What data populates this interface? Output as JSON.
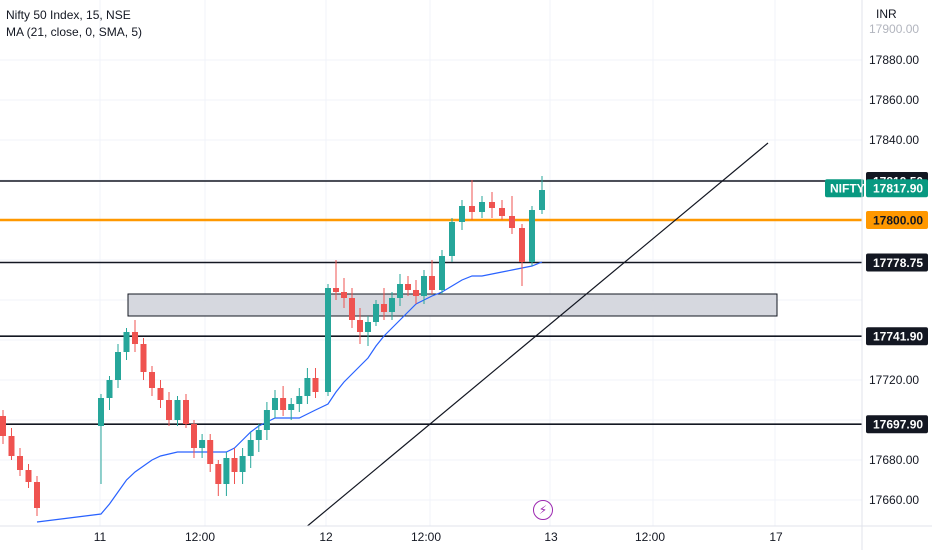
{
  "header": {
    "title": "Nifty 50 Index, 15, NSE",
    "indicator": "MA (21, close, 0, SMA, 5)"
  },
  "currency": "INR",
  "symbol_tag": "NIFTY",
  "icons": {
    "event_marker": "lightning-bolt-icon"
  },
  "colors": {
    "up": "#26a69a",
    "down": "#ef5350",
    "ma": "#2962ff",
    "orange_level": "#ff9800",
    "price_tag": "#089981",
    "level_label": "#131722",
    "zone_fill": "#d1d4dc"
  },
  "chart_data": {
    "type": "candlestick",
    "title": "Nifty 50 Index, 15, NSE",
    "y_axis": {
      "ticks": [
        17880,
        17860,
        17840,
        17720,
        17680,
        17660
      ],
      "tick_labels": [
        "17880.00",
        "17860.00",
        "17840.00",
        "17720.00",
        "17680.00",
        "17660.00"
      ],
      "range": [
        17650,
        17900
      ]
    },
    "x_axis": {
      "tick_labels": [
        "11",
        "12:00",
        "12",
        "12:00",
        "13",
        "12:00",
        "17"
      ]
    },
    "horizontal_levels": [
      {
        "value": 17819.5,
        "label": "17819.50",
        "color": "#131722"
      },
      {
        "value": 17800.0,
        "label": "17800.00",
        "color": "#ff9800"
      },
      {
        "value": 17778.75,
        "label": "17778.75",
        "color": "#131722"
      },
      {
        "value": 17741.9,
        "label": "17741.90",
        "color": "#131722"
      },
      {
        "value": 17697.9,
        "label": "17697.90",
        "color": "#131722"
      }
    ],
    "last_price": {
      "value": 17817.9,
      "label": "17817.90"
    },
    "zone": {
      "from": 17752,
      "to": 17763
    },
    "trendline": {
      "start_value": 17645,
      "end_value": 17840
    },
    "candles": [
      [
        17702,
        17705,
        17688,
        17692
      ],
      [
        17692,
        17696,
        17680,
        17682
      ],
      [
        17682,
        17686,
        17672,
        17675
      ],
      [
        17675,
        17678,
        17666,
        17669
      ],
      [
        17669,
        17672,
        17652,
        17656
      ],
      [
        17697,
        17713,
        17668,
        17711
      ],
      [
        17711,
        17722,
        17705,
        17720
      ],
      [
        17720,
        17738,
        17716,
        17734
      ],
      [
        17734,
        17746,
        17730,
        17744
      ],
      [
        17744,
        17750,
        17734,
        17738
      ],
      [
        17738,
        17741,
        17720,
        17724
      ],
      [
        17724,
        17727,
        17712,
        17716
      ],
      [
        17716,
        17720,
        17706,
        17710
      ],
      [
        17710,
        17714,
        17697,
        17700
      ],
      [
        17700,
        17712,
        17697,
        17710
      ],
      [
        17710,
        17713,
        17696,
        17698
      ],
      [
        17698,
        17700,
        17681,
        17686
      ],
      [
        17686,
        17693,
        17681,
        17690
      ],
      [
        17690,
        17693,
        17674,
        17678
      ],
      [
        17678,
        17680,
        17662,
        17668
      ],
      [
        17668,
        17684,
        17662,
        17681
      ],
      [
        17681,
        17686,
        17668,
        17674
      ],
      [
        17674,
        17686,
        17668,
        17682
      ],
      [
        17682,
        17694,
        17676,
        17690
      ],
      [
        17690,
        17698,
        17684,
        17695
      ],
      [
        17695,
        17709,
        17690,
        17705
      ],
      [
        17705,
        17715,
        17701,
        17711
      ],
      [
        17711,
        17717,
        17702,
        17705
      ],
      [
        17705,
        17711,
        17700,
        17708
      ],
      [
        17708,
        17716,
        17704,
        17712
      ],
      [
        17712,
        17726,
        17708,
        17721
      ],
      [
        17721,
        17726,
        17711,
        17714
      ],
      [
        17714,
        17768,
        17712,
        17766
      ],
      [
        17766,
        17780,
        17760,
        17764
      ],
      [
        17764,
        17771,
        17756,
        17761
      ],
      [
        17761,
        17766,
        17746,
        17750
      ],
      [
        17750,
        17756,
        17738,
        17744
      ],
      [
        17744,
        17752,
        17737,
        17749
      ],
      [
        17749,
        17760,
        17747,
        17758
      ],
      [
        17758,
        17766,
        17750,
        17754
      ],
      [
        17754,
        17764,
        17750,
        17761
      ],
      [
        17761,
        17773,
        17757,
        17768
      ],
      [
        17768,
        17772,
        17762,
        17765
      ],
      [
        17765,
        17770,
        17758,
        17762
      ],
      [
        17762,
        17775,
        17758,
        17772
      ],
      [
        17772,
        17780,
        17763,
        17765
      ],
      [
        17765,
        17785,
        17763,
        17782
      ],
      [
        17782,
        17801,
        17779,
        17799
      ],
      [
        17799,
        17810,
        17795,
        17807
      ],
      [
        17807,
        17820,
        17800,
        17804
      ],
      [
        17804,
        17812,
        17801,
        17809
      ],
      [
        17809,
        17814,
        17801,
        17806
      ],
      [
        17806,
        17810,
        17800,
        17802
      ],
      [
        17802,
        17812,
        17793,
        17796
      ],
      [
        17796,
        17798,
        17767,
        17779
      ],
      [
        17779,
        17807,
        17777,
        17805
      ],
      [
        17805,
        17822,
        17803,
        17815
      ]
    ],
    "moving_average": {
      "name": "MA (21, close, 0, SMA, 5)",
      "values": [
        null,
        null,
        null,
        null,
        17649,
        17653,
        17658,
        17664,
        17670,
        17674,
        17677,
        17680,
        17682,
        17683,
        17684,
        17684,
        17684,
        17684,
        17684,
        17684,
        17684,
        17686,
        17690,
        17694,
        17697,
        17699,
        17701,
        17701,
        17701,
        17701,
        17703,
        17705,
        17708,
        17714,
        17719,
        17723,
        17727,
        17731,
        17737,
        17742,
        17746,
        17750,
        17754,
        17758,
        17760,
        17762,
        17764,
        17767,
        17770,
        17772,
        17772,
        17773,
        17774,
        17775,
        17776,
        17777,
        17779
      ]
    }
  }
}
